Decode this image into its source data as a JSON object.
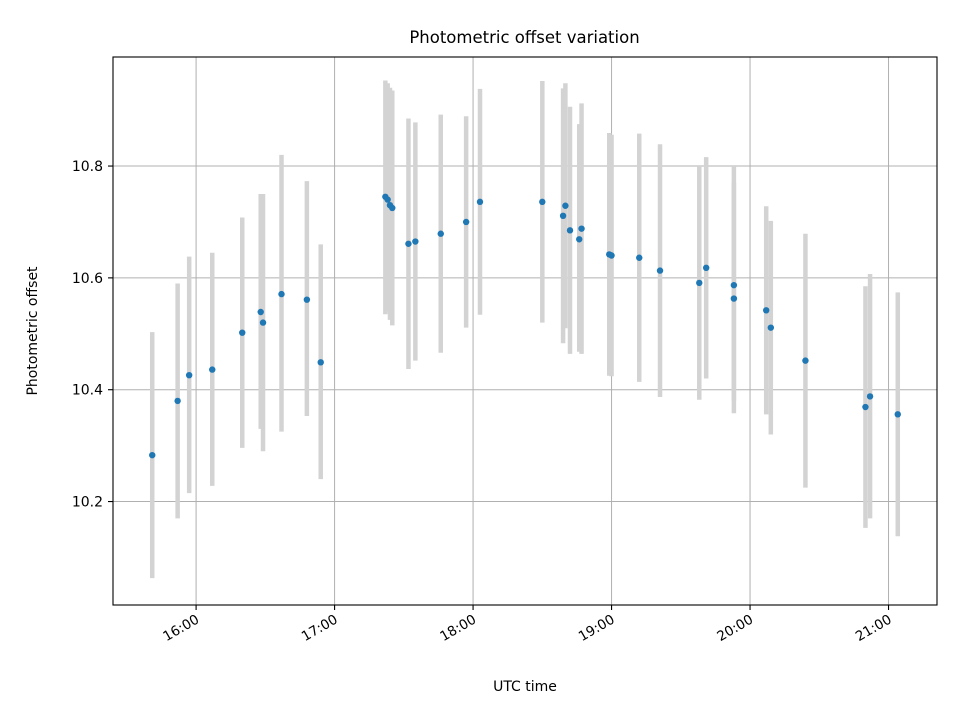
{
  "chart_data": {
    "type": "scatter",
    "title": "Photometric offset variation",
    "xlabel": "UTC time",
    "ylabel": "Photometric offset",
    "xlim": [
      "15:24",
      "21:21"
    ],
    "ylim": [
      10.015,
      10.995
    ],
    "x_ticks": [
      "16:00",
      "17:00",
      "18:00",
      "19:00",
      "20:00",
      "21:00"
    ],
    "y_ticks": [
      10.2,
      10.4,
      10.6,
      10.8
    ],
    "grid": true,
    "colors": {
      "point": "#1f77b4",
      "errorbar": "#d3d3d3",
      "grid": "#b0b0b0"
    },
    "points": [
      {
        "x": "15:41",
        "y": 10.283,
        "ylow": 10.063,
        "yhigh": 10.503
      },
      {
        "x": "15:52",
        "y": 10.38,
        "ylow": 10.17,
        "yhigh": 10.59
      },
      {
        "x": "15:57",
        "y": 10.426,
        "ylow": 10.215,
        "yhigh": 10.638
      },
      {
        "x": "16:07",
        "y": 10.436,
        "ylow": 10.228,
        "yhigh": 10.645
      },
      {
        "x": "16:20",
        "y": 10.502,
        "ylow": 10.296,
        "yhigh": 10.708
      },
      {
        "x": "16:28",
        "y": 10.539,
        "ylow": 10.33,
        "yhigh": 10.75
      },
      {
        "x": "16:29",
        "y": 10.52,
        "ylow": 10.29,
        "yhigh": 10.75
      },
      {
        "x": "16:37",
        "y": 10.571,
        "ylow": 10.325,
        "yhigh": 10.82
      },
      {
        "x": "16:48",
        "y": 10.561,
        "ylow": 10.353,
        "yhigh": 10.773
      },
      {
        "x": "16:54",
        "y": 10.449,
        "ylow": 10.24,
        "yhigh": 10.66
      },
      {
        "x": "17:22",
        "y": 10.745,
        "ylow": 10.535,
        "yhigh": 10.953
      },
      {
        "x": "17:23",
        "y": 10.74,
        "ylow": 10.54,
        "yhigh": 10.948
      },
      {
        "x": "17:24",
        "y": 10.73,
        "ylow": 10.525,
        "yhigh": 10.94
      },
      {
        "x": "17:25",
        "y": 10.725,
        "ylow": 10.515,
        "yhigh": 10.935
      },
      {
        "x": "17:32",
        "y": 10.661,
        "ylow": 10.437,
        "yhigh": 10.885
      },
      {
        "x": "17:35",
        "y": 10.665,
        "ylow": 10.452,
        "yhigh": 10.878
      },
      {
        "x": "17:46",
        "y": 10.679,
        "ylow": 10.466,
        "yhigh": 10.892
      },
      {
        "x": "17:57",
        "y": 10.7,
        "ylow": 10.511,
        "yhigh": 10.889
      },
      {
        "x": "18:03",
        "y": 10.736,
        "ylow": 10.534,
        "yhigh": 10.938
      },
      {
        "x": "18:30",
        "y": 10.736,
        "ylow": 10.52,
        "yhigh": 10.952
      },
      {
        "x": "18:39",
        "y": 10.711,
        "ylow": 10.483,
        "yhigh": 10.939
      },
      {
        "x": "18:40",
        "y": 10.729,
        "ylow": 10.51,
        "yhigh": 10.948
      },
      {
        "x": "18:42",
        "y": 10.685,
        "ylow": 10.464,
        "yhigh": 10.906
      },
      {
        "x": "18:46",
        "y": 10.669,
        "ylow": 10.468,
        "yhigh": 10.875
      },
      {
        "x": "18:47",
        "y": 10.688,
        "ylow": 10.464,
        "yhigh": 10.912
      },
      {
        "x": "18:59",
        "y": 10.642,
        "ylow": 10.425,
        "yhigh": 10.859
      },
      {
        "x": "19:00",
        "y": 10.64,
        "ylow": 10.424,
        "yhigh": 10.856
      },
      {
        "x": "19:12",
        "y": 10.636,
        "ylow": 10.414,
        "yhigh": 10.858
      },
      {
        "x": "19:21",
        "y": 10.613,
        "ylow": 10.387,
        "yhigh": 10.839
      },
      {
        "x": "19:38",
        "y": 10.591,
        "ylow": 10.382,
        "yhigh": 10.8
      },
      {
        "x": "19:41",
        "y": 10.618,
        "ylow": 10.42,
        "yhigh": 10.816
      },
      {
        "x": "19:53",
        "y": 10.587,
        "ylow": 10.38,
        "yhigh": 10.8
      },
      {
        "x": "19:53",
        "y": 10.563,
        "ylow": 10.358,
        "yhigh": 10.77
      },
      {
        "x": "20:07",
        "y": 10.542,
        "ylow": 10.356,
        "yhigh": 10.728
      },
      {
        "x": "20:09",
        "y": 10.511,
        "ylow": 10.32,
        "yhigh": 10.702
      },
      {
        "x": "20:24",
        "y": 10.452,
        "ylow": 10.225,
        "yhigh": 10.679
      },
      {
        "x": "20:50",
        "y": 10.369,
        "ylow": 10.153,
        "yhigh": 10.585
      },
      {
        "x": "20:52",
        "y": 10.388,
        "ylow": 10.17,
        "yhigh": 10.607
      },
      {
        "x": "21:04",
        "y": 10.356,
        "ylow": 10.138,
        "yhigh": 10.574
      }
    ]
  }
}
